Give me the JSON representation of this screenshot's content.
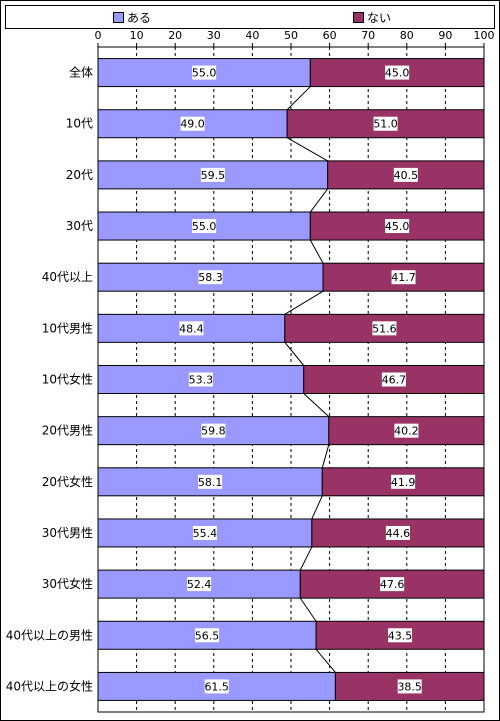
{
  "chart_data": {
    "type": "bar",
    "orientation": "horizontal",
    "stacked": true,
    "percent_stacked": true,
    "categories": [
      "全体",
      "10代",
      "20代",
      "30代",
      "40代以上",
      "10代男性",
      "10代女性",
      "20代男性",
      "20代女性",
      "30代男性",
      "30代女性",
      "40代以上の男性",
      "40代以上の女性"
    ],
    "series": [
      {
        "name": "ある",
        "values": [
          55.0,
          49.0,
          59.5,
          55.0,
          58.3,
          48.4,
          53.3,
          59.8,
          58.1,
          55.4,
          52.4,
          56.5,
          61.5
        ],
        "labels": [
          "55.0",
          "49.0",
          "59.5",
          "55.0",
          "58.3",
          "48.4",
          "53.3",
          "59.8",
          "58.1",
          "55.4",
          "52.4",
          "56.5",
          "61.5"
        ],
        "color": "#9999ff"
      },
      {
        "name": "ない",
        "values": [
          45.0,
          51.0,
          40.5,
          45.0,
          41.7,
          51.6,
          46.7,
          40.2,
          41.9,
          44.6,
          47.6,
          43.5,
          38.5
        ],
        "labels": [
          "45.0",
          "51.0",
          "40.5",
          "45.0",
          "41.7",
          "51.6",
          "46.7",
          "40.2",
          "41.9",
          "44.6",
          "47.6",
          "43.5",
          "38.5"
        ],
        "color": "#993366"
      }
    ],
    "x_ticks": [
      "0",
      "10",
      "20",
      "30",
      "40",
      "50",
      "60",
      "70",
      "80",
      "90",
      "100"
    ],
    "xlim": [
      0,
      100
    ],
    "x_axis_position": "top",
    "grid": "vertical dashed",
    "series_lines": true,
    "legend_position": "top"
  }
}
